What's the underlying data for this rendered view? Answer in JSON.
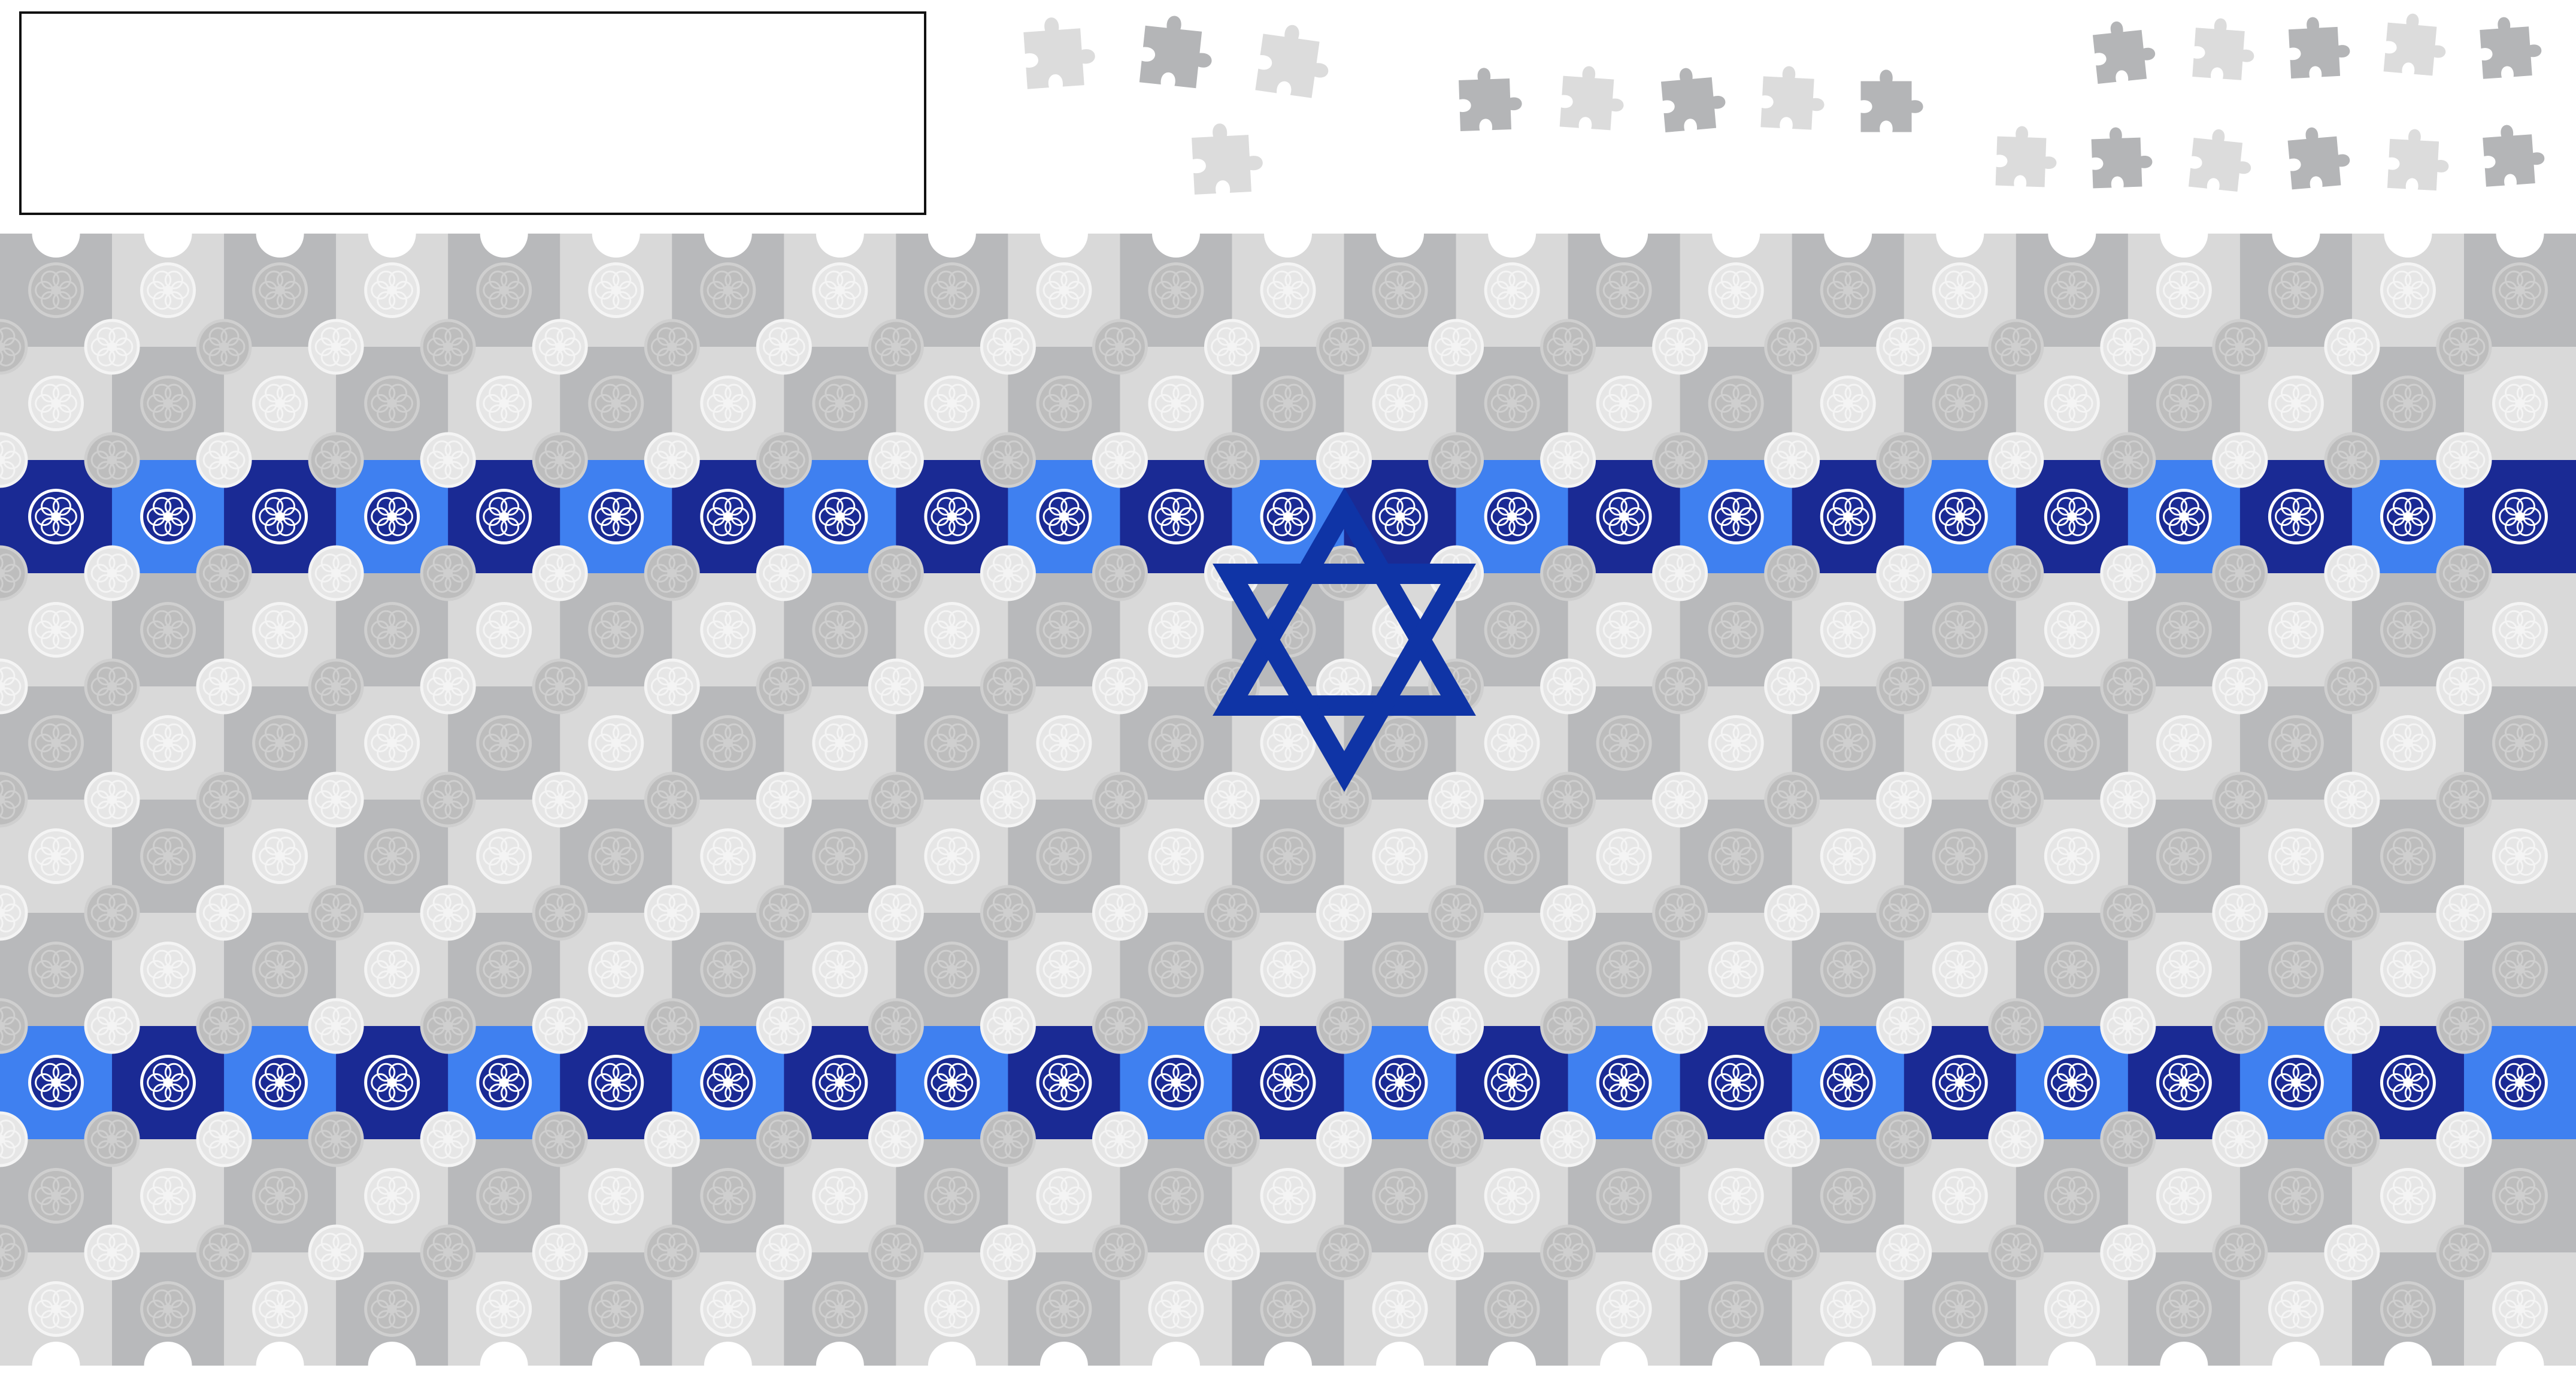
{
  "game": {
    "score_text": "",
    "board": {
      "columns": 23,
      "rows": 10,
      "stripe_rows": [
        2,
        7
      ]
    },
    "loose_pieces": {
      "group_count": 3,
      "group_sizes": [
        4,
        5,
        10
      ]
    },
    "emblem": "star-of-david",
    "colors": {
      "background": "#ffffff",
      "tile_light": "#d9d9d9",
      "tile_dark": "#b8b9bb",
      "knob_light": "#e6e6e6",
      "knob_dark": "#bdbdbd",
      "stripe_light": "#3f80f0",
      "stripe_dark": "#1a2a94",
      "star": "#0f34a6",
      "piece_light": "#dcdcdc",
      "piece_dark": "#b4b5b7"
    }
  }
}
